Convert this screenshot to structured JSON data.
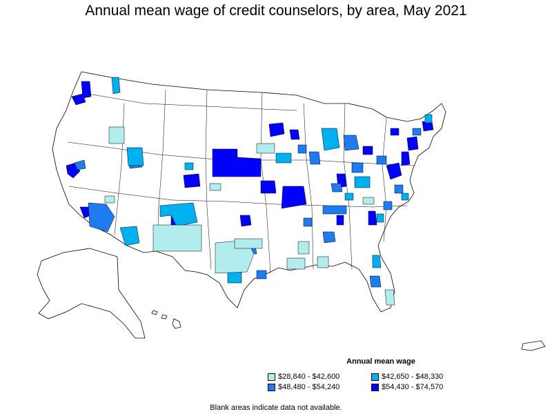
{
  "title": "Annual mean wage of credit counselors, by area, May 2021",
  "legend": {
    "title": "Annual mean wage",
    "items": [
      {
        "label": "$28,840 - $42,600",
        "color": "#b3ecec"
      },
      {
        "label": "$42,650 - $48,330",
        "color": "#00b0f0"
      },
      {
        "label": "$48,480 - $54,240",
        "color": "#1e7cf0"
      },
      {
        "label": "$54,430 - $74,570",
        "color": "#0000ff"
      }
    ]
  },
  "footnote": "Blank areas indicate data not available."
}
